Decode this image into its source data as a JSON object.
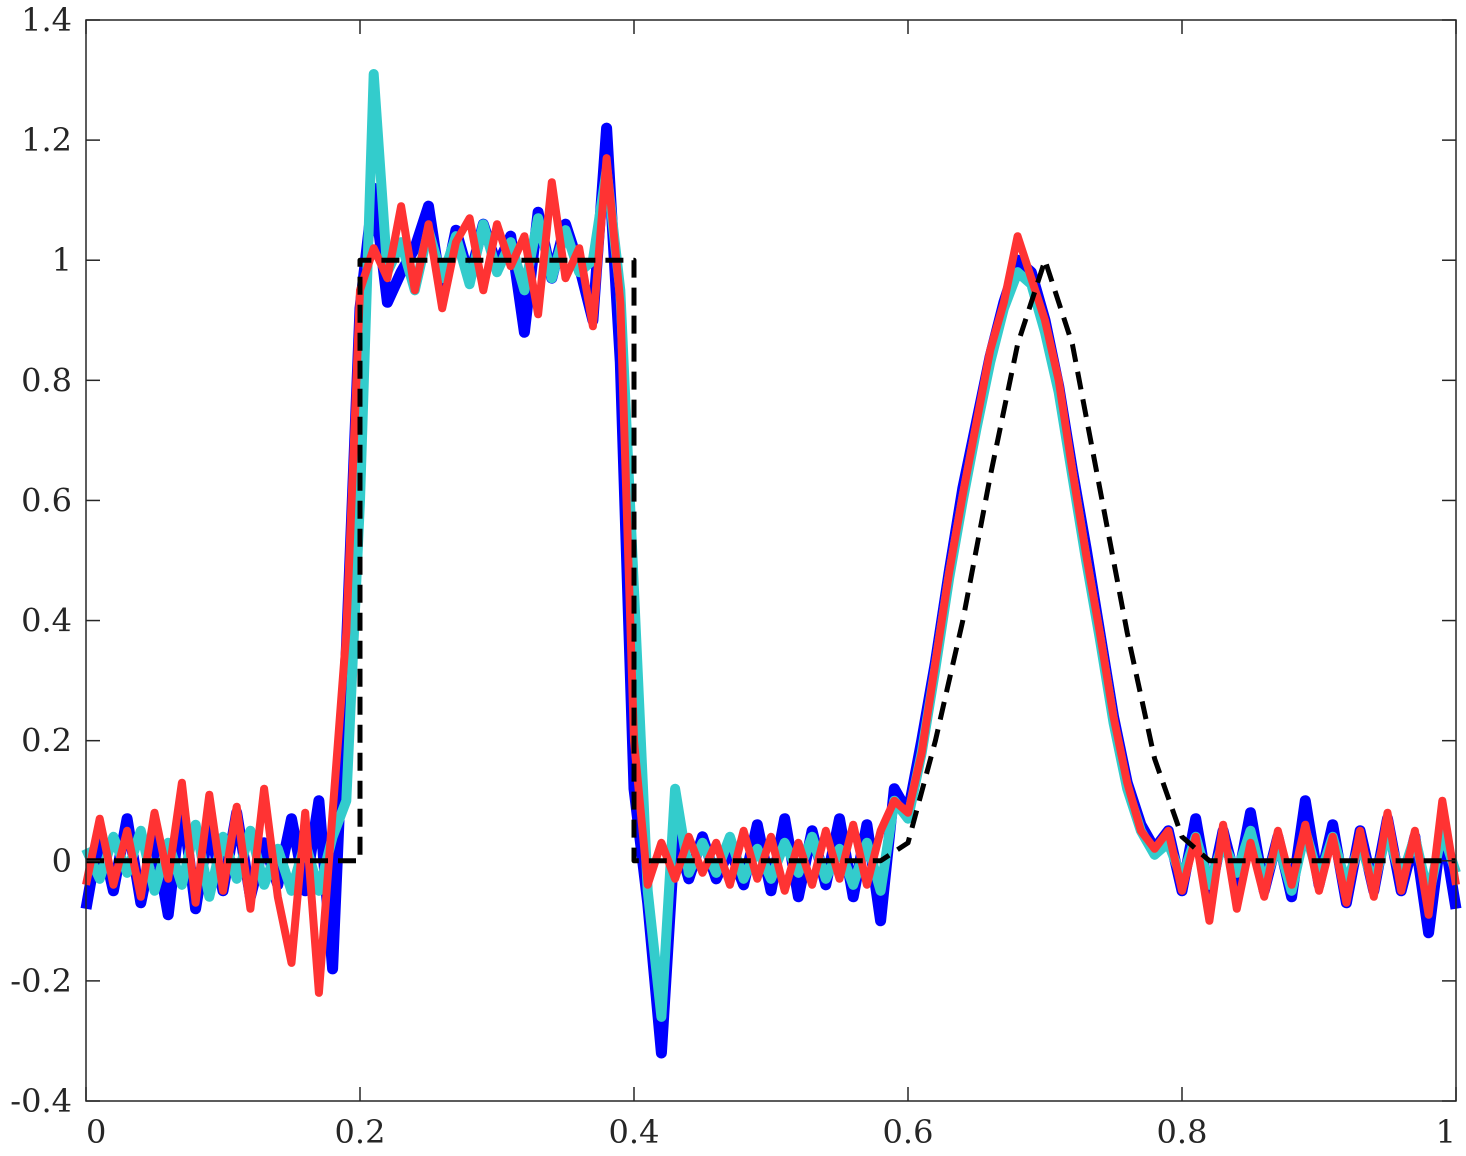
{
  "chart_data": {
    "type": "line",
    "title": "",
    "xlabel": "",
    "ylabel": "",
    "xlim": [
      0,
      1
    ],
    "ylim": [
      -0.4,
      1.4
    ],
    "grid": false,
    "legend": "none",
    "xticks": [
      0,
      0.2,
      0.4,
      0.6,
      0.8,
      1
    ],
    "yticks": [
      -0.4,
      -0.2,
      0,
      0.2,
      0.4,
      0.6,
      0.8,
      1,
      1.2,
      1.4
    ],
    "xtick_labels": [
      "0",
      "0.2",
      "0.4",
      "0.6",
      "0.8",
      "1"
    ],
    "ytick_labels": [
      "-0.4",
      "-0.2",
      "0",
      "0.2",
      "0.4",
      "0.6",
      "0.8",
      "1",
      "1.2",
      "1.4"
    ],
    "series": [
      {
        "color": "#0000ff",
        "style": "solid",
        "x": [
          0,
          0.01,
          0.02,
          0.03,
          0.04,
          0.05,
          0.06,
          0.07,
          0.08,
          0.09,
          0.1,
          0.11,
          0.12,
          0.13,
          0.14,
          0.15,
          0.16,
          0.17,
          0.18,
          0.19,
          0.2,
          0.21,
          0.22,
          0.23,
          0.24,
          0.25,
          0.26,
          0.27,
          0.28,
          0.29,
          0.3,
          0.31,
          0.32,
          0.33,
          0.34,
          0.35,
          0.36,
          0.37,
          0.38,
          0.39,
          0.4,
          0.41,
          0.42,
          0.43,
          0.44,
          0.45,
          0.46,
          0.47,
          0.48,
          0.49,
          0.5,
          0.51,
          0.52,
          0.53,
          0.54,
          0.55,
          0.56,
          0.57,
          0.58,
          0.59,
          0.6,
          0.61,
          0.62,
          0.63,
          0.64,
          0.65,
          0.66,
          0.67,
          0.68,
          0.69,
          0.7,
          0.71,
          0.72,
          0.73,
          0.74,
          0.75,
          0.76,
          0.77,
          0.78,
          0.79,
          0.8,
          0.81,
          0.82,
          0.83,
          0.84,
          0.85,
          0.86,
          0.87,
          0.88,
          0.89,
          0.9,
          0.91,
          0.92,
          0.93,
          0.94,
          0.95,
          0.96,
          0.97,
          0.98,
          0.99,
          1
        ],
        "y": [
          -0.08,
          0.05,
          -0.05,
          0.07,
          -0.07,
          0.04,
          -0.09,
          0.1,
          -0.08,
          0.06,
          -0.05,
          0.08,
          -0.06,
          0.03,
          -0.04,
          0.07,
          -0.05,
          0.1,
          -0.18,
          0.35,
          0.92,
          1.12,
          0.93,
          0.98,
          1.02,
          1.09,
          0.94,
          1.05,
          0.97,
          1.06,
          0.99,
          1.04,
          0.88,
          1.08,
          0.97,
          1.06,
          0.99,
          0.9,
          1.22,
          0.83,
          0.12,
          -0.07,
          -0.32,
          0.05,
          -0.03,
          0.04,
          -0.03,
          0.02,
          -0.04,
          0.06,
          -0.05,
          0.07,
          -0.06,
          0.05,
          -0.04,
          0.07,
          -0.06,
          0.06,
          -0.1,
          0.12,
          0.08,
          0.2,
          0.33,
          0.48,
          0.62,
          0.73,
          0.84,
          0.93,
          1.0,
          0.98,
          0.9,
          0.79,
          0.65,
          0.52,
          0.38,
          0.24,
          0.13,
          0.06,
          0.02,
          0.05,
          -0.05,
          0.07,
          -0.06,
          0.05,
          -0.04,
          0.08,
          -0.05,
          0.04,
          -0.06,
          0.1,
          -0.04,
          0.06,
          -0.07,
          0.05,
          -0.05,
          0.07,
          -0.05,
          0.04,
          -0.12,
          0.06,
          -0.08
        ]
      },
      {
        "color": "#33cccc",
        "style": "solid",
        "x": [
          0,
          0.01,
          0.02,
          0.03,
          0.04,
          0.05,
          0.06,
          0.07,
          0.08,
          0.09,
          0.1,
          0.11,
          0.12,
          0.13,
          0.14,
          0.15,
          0.16,
          0.17,
          0.18,
          0.19,
          0.2,
          0.21,
          0.22,
          0.23,
          0.24,
          0.25,
          0.26,
          0.27,
          0.28,
          0.29,
          0.3,
          0.31,
          0.32,
          0.33,
          0.34,
          0.35,
          0.36,
          0.37,
          0.38,
          0.39,
          0.4,
          0.41,
          0.42,
          0.43,
          0.44,
          0.45,
          0.46,
          0.47,
          0.48,
          0.49,
          0.5,
          0.51,
          0.52,
          0.53,
          0.54,
          0.55,
          0.56,
          0.57,
          0.58,
          0.59,
          0.6,
          0.61,
          0.62,
          0.63,
          0.64,
          0.65,
          0.66,
          0.67,
          0.68,
          0.69,
          0.7,
          0.71,
          0.72,
          0.73,
          0.74,
          0.75,
          0.76,
          0.77,
          0.78,
          0.79,
          0.8,
          0.81,
          0.82,
          0.83,
          0.84,
          0.85,
          0.86,
          0.87,
          0.88,
          0.89,
          0.9,
          0.91,
          0.92,
          0.93,
          0.94,
          0.95,
          0.96,
          0.97,
          0.98,
          0.99,
          1
        ],
        "y": [
          0.02,
          -0.03,
          0.04,
          -0.02,
          0.05,
          -0.05,
          0.03,
          -0.04,
          0.06,
          -0.06,
          0.04,
          -0.03,
          0.05,
          -0.04,
          0.02,
          -0.05,
          0.03,
          -0.05,
          0.04,
          0.1,
          0.6,
          1.31,
          0.98,
          1.03,
          0.95,
          1.05,
          0.97,
          1.04,
          0.96,
          1.06,
          0.98,
          1.03,
          0.95,
          1.07,
          0.97,
          1.05,
          0.98,
          1.0,
          1.15,
          0.95,
          0.45,
          -0.05,
          -0.26,
          0.12,
          -0.02,
          0.03,
          -0.02,
          0.04,
          -0.03,
          0.02,
          -0.03,
          0.03,
          -0.02,
          0.04,
          -0.03,
          0.02,
          -0.04,
          0.03,
          -0.05,
          0.1,
          0.07,
          0.18,
          0.32,
          0.47,
          0.6,
          0.72,
          0.83,
          0.92,
          0.98,
          0.96,
          0.88,
          0.78,
          0.64,
          0.5,
          0.37,
          0.23,
          0.12,
          0.05,
          0.01,
          0.03,
          -0.03,
          0.04,
          -0.04,
          0.03,
          -0.02,
          0.05,
          -0.04,
          0.03,
          -0.05,
          0.05,
          -0.03,
          0.04,
          -0.04,
          0.03,
          -0.04,
          0.05,
          -0.03,
          0.04,
          -0.06,
          0.05,
          -0.02
        ]
      },
      {
        "color": "#ff3333",
        "style": "solid",
        "x": [
          0,
          0.01,
          0.02,
          0.03,
          0.04,
          0.05,
          0.06,
          0.07,
          0.08,
          0.09,
          0.1,
          0.11,
          0.12,
          0.13,
          0.14,
          0.15,
          0.16,
          0.17,
          0.18,
          0.19,
          0.2,
          0.21,
          0.22,
          0.23,
          0.24,
          0.25,
          0.26,
          0.27,
          0.28,
          0.29,
          0.3,
          0.31,
          0.32,
          0.33,
          0.34,
          0.35,
          0.36,
          0.37,
          0.38,
          0.39,
          0.4,
          0.41,
          0.42,
          0.43,
          0.44,
          0.45,
          0.46,
          0.47,
          0.48,
          0.49,
          0.5,
          0.51,
          0.52,
          0.53,
          0.54,
          0.55,
          0.56,
          0.57,
          0.58,
          0.59,
          0.6,
          0.61,
          0.62,
          0.63,
          0.64,
          0.65,
          0.66,
          0.67,
          0.68,
          0.69,
          0.7,
          0.71,
          0.72,
          0.73,
          0.74,
          0.75,
          0.76,
          0.77,
          0.78,
          0.79,
          0.8,
          0.81,
          0.82,
          0.83,
          0.84,
          0.85,
          0.86,
          0.87,
          0.88,
          0.89,
          0.9,
          0.91,
          0.92,
          0.93,
          0.94,
          0.95,
          0.96,
          0.97,
          0.98,
          0.99,
          1
        ],
        "y": [
          -0.04,
          0.07,
          -0.04,
          0.05,
          -0.06,
          0.08,
          -0.03,
          0.13,
          -0.07,
          0.11,
          -0.05,
          0.09,
          -0.08,
          0.12,
          -0.06,
          -0.17,
          0.08,
          -0.22,
          0.08,
          0.38,
          0.95,
          1.02,
          0.97,
          1.09,
          0.95,
          1.06,
          0.92,
          1.03,
          1.07,
          0.95,
          1.06,
          0.99,
          1.04,
          0.91,
          1.13,
          0.97,
          1.02,
          0.89,
          1.17,
          0.93,
          0.2,
          -0.04,
          0.03,
          -0.03,
          0.04,
          -0.02,
          0.03,
          -0.04,
          0.05,
          -0.03,
          0.04,
          -0.05,
          0.03,
          -0.04,
          0.05,
          -0.03,
          0.06,
          -0.04,
          0.05,
          0.1,
          0.08,
          0.18,
          0.33,
          0.48,
          0.61,
          0.73,
          0.85,
          0.93,
          1.04,
          0.97,
          0.9,
          0.8,
          0.65,
          0.51,
          0.38,
          0.24,
          0.13,
          0.05,
          0.02,
          0.05,
          -0.05,
          0.04,
          -0.1,
          0.06,
          -0.08,
          0.03,
          -0.06,
          0.05,
          -0.04,
          0.06,
          -0.05,
          0.04,
          -0.07,
          0.05,
          -0.06,
          0.08,
          -0.05,
          0.05,
          -0.09,
          0.1,
          -0.04
        ]
      },
      {
        "color": "#000000",
        "style": "dashed",
        "x": [
          0,
          0.19,
          0.2,
          0.2,
          0.4,
          0.4,
          0.58,
          0.6,
          0.62,
          0.64,
          0.66,
          0.68,
          0.7,
          0.72,
          0.74,
          0.76,
          0.78,
          0.8,
          0.82,
          1
        ],
        "y": [
          0,
          0,
          0,
          1,
          1,
          0,
          0,
          0.03,
          0.2,
          0.4,
          0.64,
          0.86,
          1,
          0.86,
          0.62,
          0.38,
          0.17,
          0.04,
          0.0,
          0
        ]
      }
    ]
  }
}
